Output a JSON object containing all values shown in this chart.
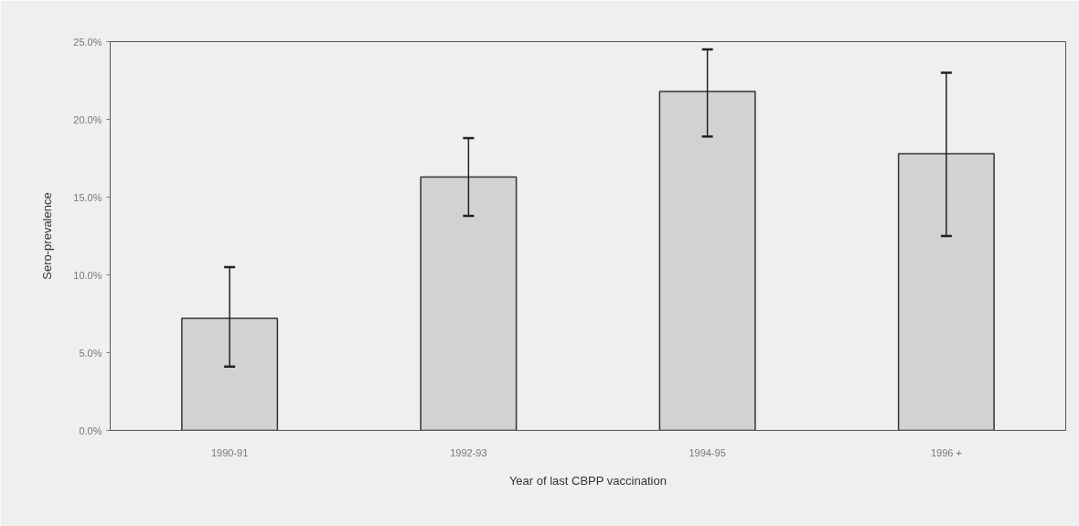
{
  "chart_data": {
    "type": "bar",
    "xlabel": "Year of last CBPP vaccination",
    "ylabel": "Sero-prevalence",
    "categories": [
      "1990-91",
      "1992-93",
      "1994-95",
      "1996 +"
    ],
    "values": [
      7.2,
      16.3,
      21.8,
      17.8
    ],
    "errors": [
      [
        4.1,
        10.5
      ],
      [
        13.8,
        18.8
      ],
      [
        18.9,
        24.5
      ],
      [
        12.5,
        23.0
      ]
    ],
    "color": "#d2d2d2",
    "ylim": [
      0,
      25
    ],
    "yticks": [
      {
        "value": 0,
        "label": "0.0%"
      },
      {
        "value": 5,
        "label": "5.0%"
      },
      {
        "value": 10,
        "label": "10.0%"
      },
      {
        "value": 15,
        "label": "15.0%"
      },
      {
        "value": 20,
        "label": "20.0%"
      },
      {
        "value": 25,
        "label": "25.0%"
      }
    ]
  }
}
